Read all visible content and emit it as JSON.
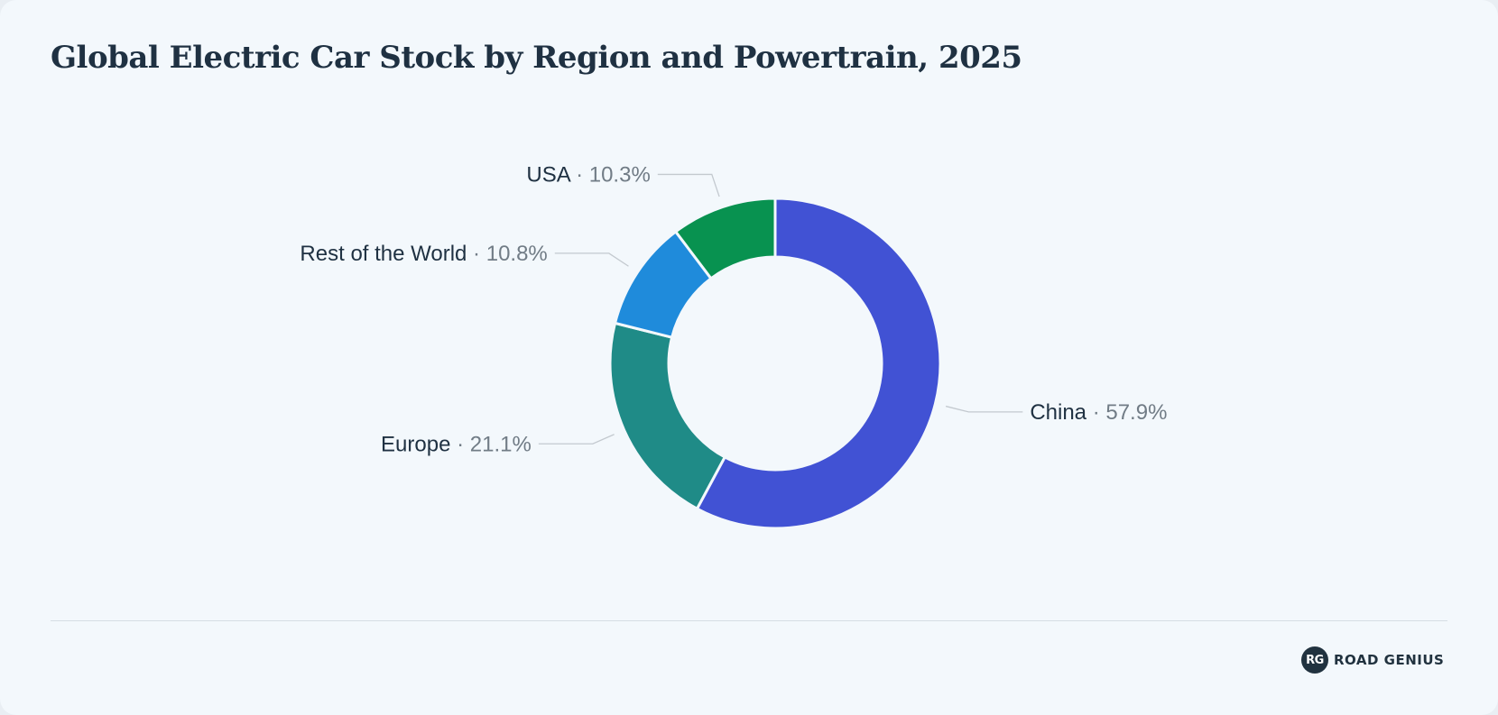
{
  "title": "Global Electric Car Stock by Region and Powertrain, 2025",
  "brand": {
    "mark": "RG",
    "name": "ROAD GENIUS"
  },
  "chart_data": {
    "type": "pie",
    "style": "donut",
    "title": "Global Electric Car Stock by Region and Powertrain, 2025",
    "legend": "none",
    "separator": " · ",
    "slices": [
      {
        "label": "China",
        "value": 57.9,
        "display": "57.9%",
        "color": "#4152d4"
      },
      {
        "label": "Europe",
        "value": 21.1,
        "display": "21.1%",
        "color": "#1f8b87"
      },
      {
        "label": "Rest of the World",
        "value": 10.8,
        "display": "10.8%",
        "color": "#1f8bdb"
      },
      {
        "label": "USA",
        "value": 10.3,
        "display": "10.3%",
        "color": "#089250"
      }
    ]
  }
}
